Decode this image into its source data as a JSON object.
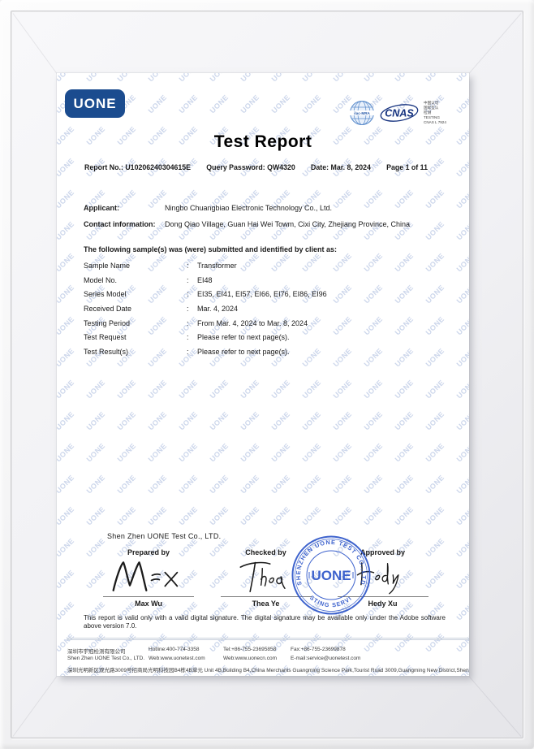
{
  "watermark": "UONE",
  "header": {
    "logo_text": "UONE",
    "title": "Test Report",
    "meta": {
      "report_no": "Report No.: U10206240304615E",
      "query_password": "Query Password: QW4320",
      "date": "Date: Mar. 8, 2024",
      "page": "Page 1 of 11"
    },
    "accreditation": {
      "ilac_label": "ilac-MRA",
      "cnas_label": "CNAS",
      "cnas_lines": [
        "中国认可",
        "国际互认",
        "检测",
        "TESTING",
        "CNAS L 7924"
      ]
    }
  },
  "applicant": {
    "label": "Applicant:",
    "value": "Ningbo Chuangbiao Electronic Technology Co., Ltd."
  },
  "contact": {
    "label": "Contact information:",
    "value": "Dong Qiao Village, Guan Hai Wei Towm, Cixi City, Zhejiang Province, China"
  },
  "sample_intro": "The following sample(s) was (were) submitted and identified by client as:",
  "sample_separator": ":",
  "sample_rows": [
    {
      "label": "Sample Name",
      "value": "Transformer"
    },
    {
      "label": "Model No.",
      "value": "EI48"
    },
    {
      "label": "Series Model",
      "value": "EI35, EI41, EI57, EI66, EI76, EI86, EI96"
    },
    {
      "label": "Received Date",
      "value": "Mar. 4, 2024"
    },
    {
      "label": "Testing Period",
      "value": "From Mar. 4, 2024 to Mar. 8, 2024"
    },
    {
      "label": "Test Request",
      "value": "Please refer to next page(s)."
    },
    {
      "label": "Test Result(s)",
      "value": "Please refer to next page(s)."
    }
  ],
  "company_line": "Shen Zhen UONE Test Co., LTD.",
  "signatures": [
    {
      "role": "Prepared by",
      "name": "Max Wu"
    },
    {
      "role": "Checked by",
      "name": "Thea Ye"
    },
    {
      "role": "Approved by",
      "name": "Hedy Xu"
    }
  ],
  "stamp": {
    "top": "SHENZHEN UONE TEST CO.,LTD",
    "center": "UONE",
    "bottom": "TESTING SERVICE"
  },
  "disclaimer": "This report is valid only with a valid digital signature. The digital signature may be available only under the Adobe software above version 7.0.",
  "footer": {
    "rows": [
      [
        "深圳市宇冠检测有限公司",
        "Hotline:400-774-3358",
        "Tel:+86-755-23695858",
        "Fax:+86-755-23699878"
      ],
      [
        "Shen Zhen UONE Test Co., LTD.",
        "Web:www.uonetest.com",
        "Web:www.uonecn.com",
        "E-mail:service@uonetest.com"
      ]
    ],
    "address": "深圳光明新区观光路3009号招商局光明科技园B4栋4B单元  Unit 4B,Building B4,China Merchants Guangming Science Park,Tourist Road 3009,Guangming New District,ShenZhen"
  },
  "colors": {
    "brand_blue": "#1b4c8f",
    "stamp_blue": "#2e56c9",
    "watermark_blue": "#c3cfe6"
  }
}
